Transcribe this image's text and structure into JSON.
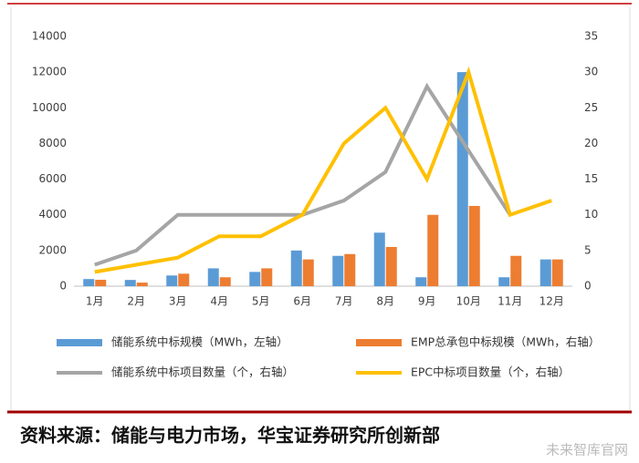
{
  "chart_data": {
    "type": "combo",
    "categories": [
      "1月",
      "2月",
      "3月",
      "4月",
      "5月",
      "6月",
      "7月",
      "8月",
      "9月",
      "10月",
      "11月",
      "12月"
    ],
    "series": [
      {
        "name": "储能系统中标规模（MWh，左轴）",
        "type": "bar",
        "color": "#5b9bd5",
        "values": [
          400,
          350,
          600,
          1000,
          800,
          2000,
          1700,
          3000,
          500,
          12000,
          500,
          1500
        ]
      },
      {
        "name": "EMP总承包中标规模（MWh，右轴）",
        "type": "bar",
        "axis": "y2",
        "color": "#ed7d31",
        "values": [
          0.9,
          0.5,
          1.75,
          1.25,
          2.5,
          3.75,
          4.5,
          5.5,
          10,
          11.25,
          4.25,
          3.75
        ]
      },
      {
        "name": "储能系统中标项目数量（个，右轴）",
        "type": "line",
        "axis": "y2",
        "color": "#a5a5a5",
        "values": [
          3,
          5,
          10,
          10,
          10,
          10,
          12,
          16,
          28,
          19,
          10,
          null
        ]
      },
      {
        "name": "EPC中标项目数量（个，右轴）",
        "type": "line",
        "axis": "y2",
        "color": "#ffc000",
        "values": [
          2,
          3,
          4,
          7,
          7,
          10,
          20,
          25,
          15,
          30,
          10,
          12
        ]
      }
    ],
    "ylim": [
      0,
      14000
    ],
    "yticks": [
      0,
      2000,
      4000,
      6000,
      8000,
      10000,
      12000,
      14000
    ],
    "y2lim": [
      0,
      35
    ],
    "y2ticks": [
      0,
      5,
      10,
      15,
      20,
      25,
      30,
      35
    ]
  },
  "source": "资料来源：储能与电力市场，华宝证券研究所创新部",
  "watermark": "未来智库官网"
}
